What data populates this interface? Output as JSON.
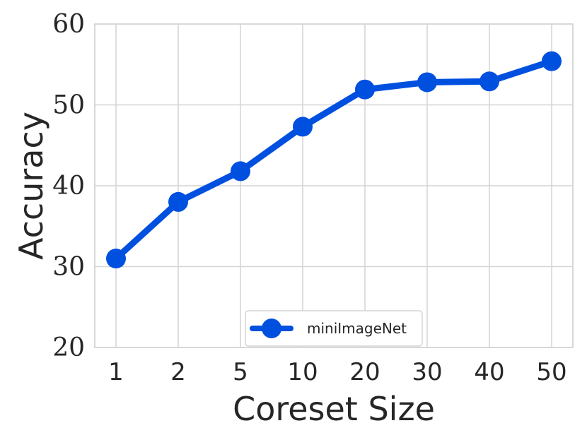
{
  "chart_data": {
    "type": "line",
    "xlabel": "Coreset Size",
    "ylabel": "Accuracy",
    "categories": [
      "1",
      "2",
      "5",
      "10",
      "20",
      "30",
      "40",
      "50"
    ],
    "yticks": [
      "20",
      "30",
      "40",
      "50",
      "60"
    ],
    "ylim": [
      20,
      60
    ],
    "grid": true,
    "legend_position": "bottom-center",
    "series": [
      {
        "name": "miniImageNet",
        "color": "#0050e0",
        "values": [
          31.0,
          38.0,
          41.8,
          47.3,
          51.9,
          52.8,
          52.9,
          55.4
        ]
      }
    ]
  }
}
